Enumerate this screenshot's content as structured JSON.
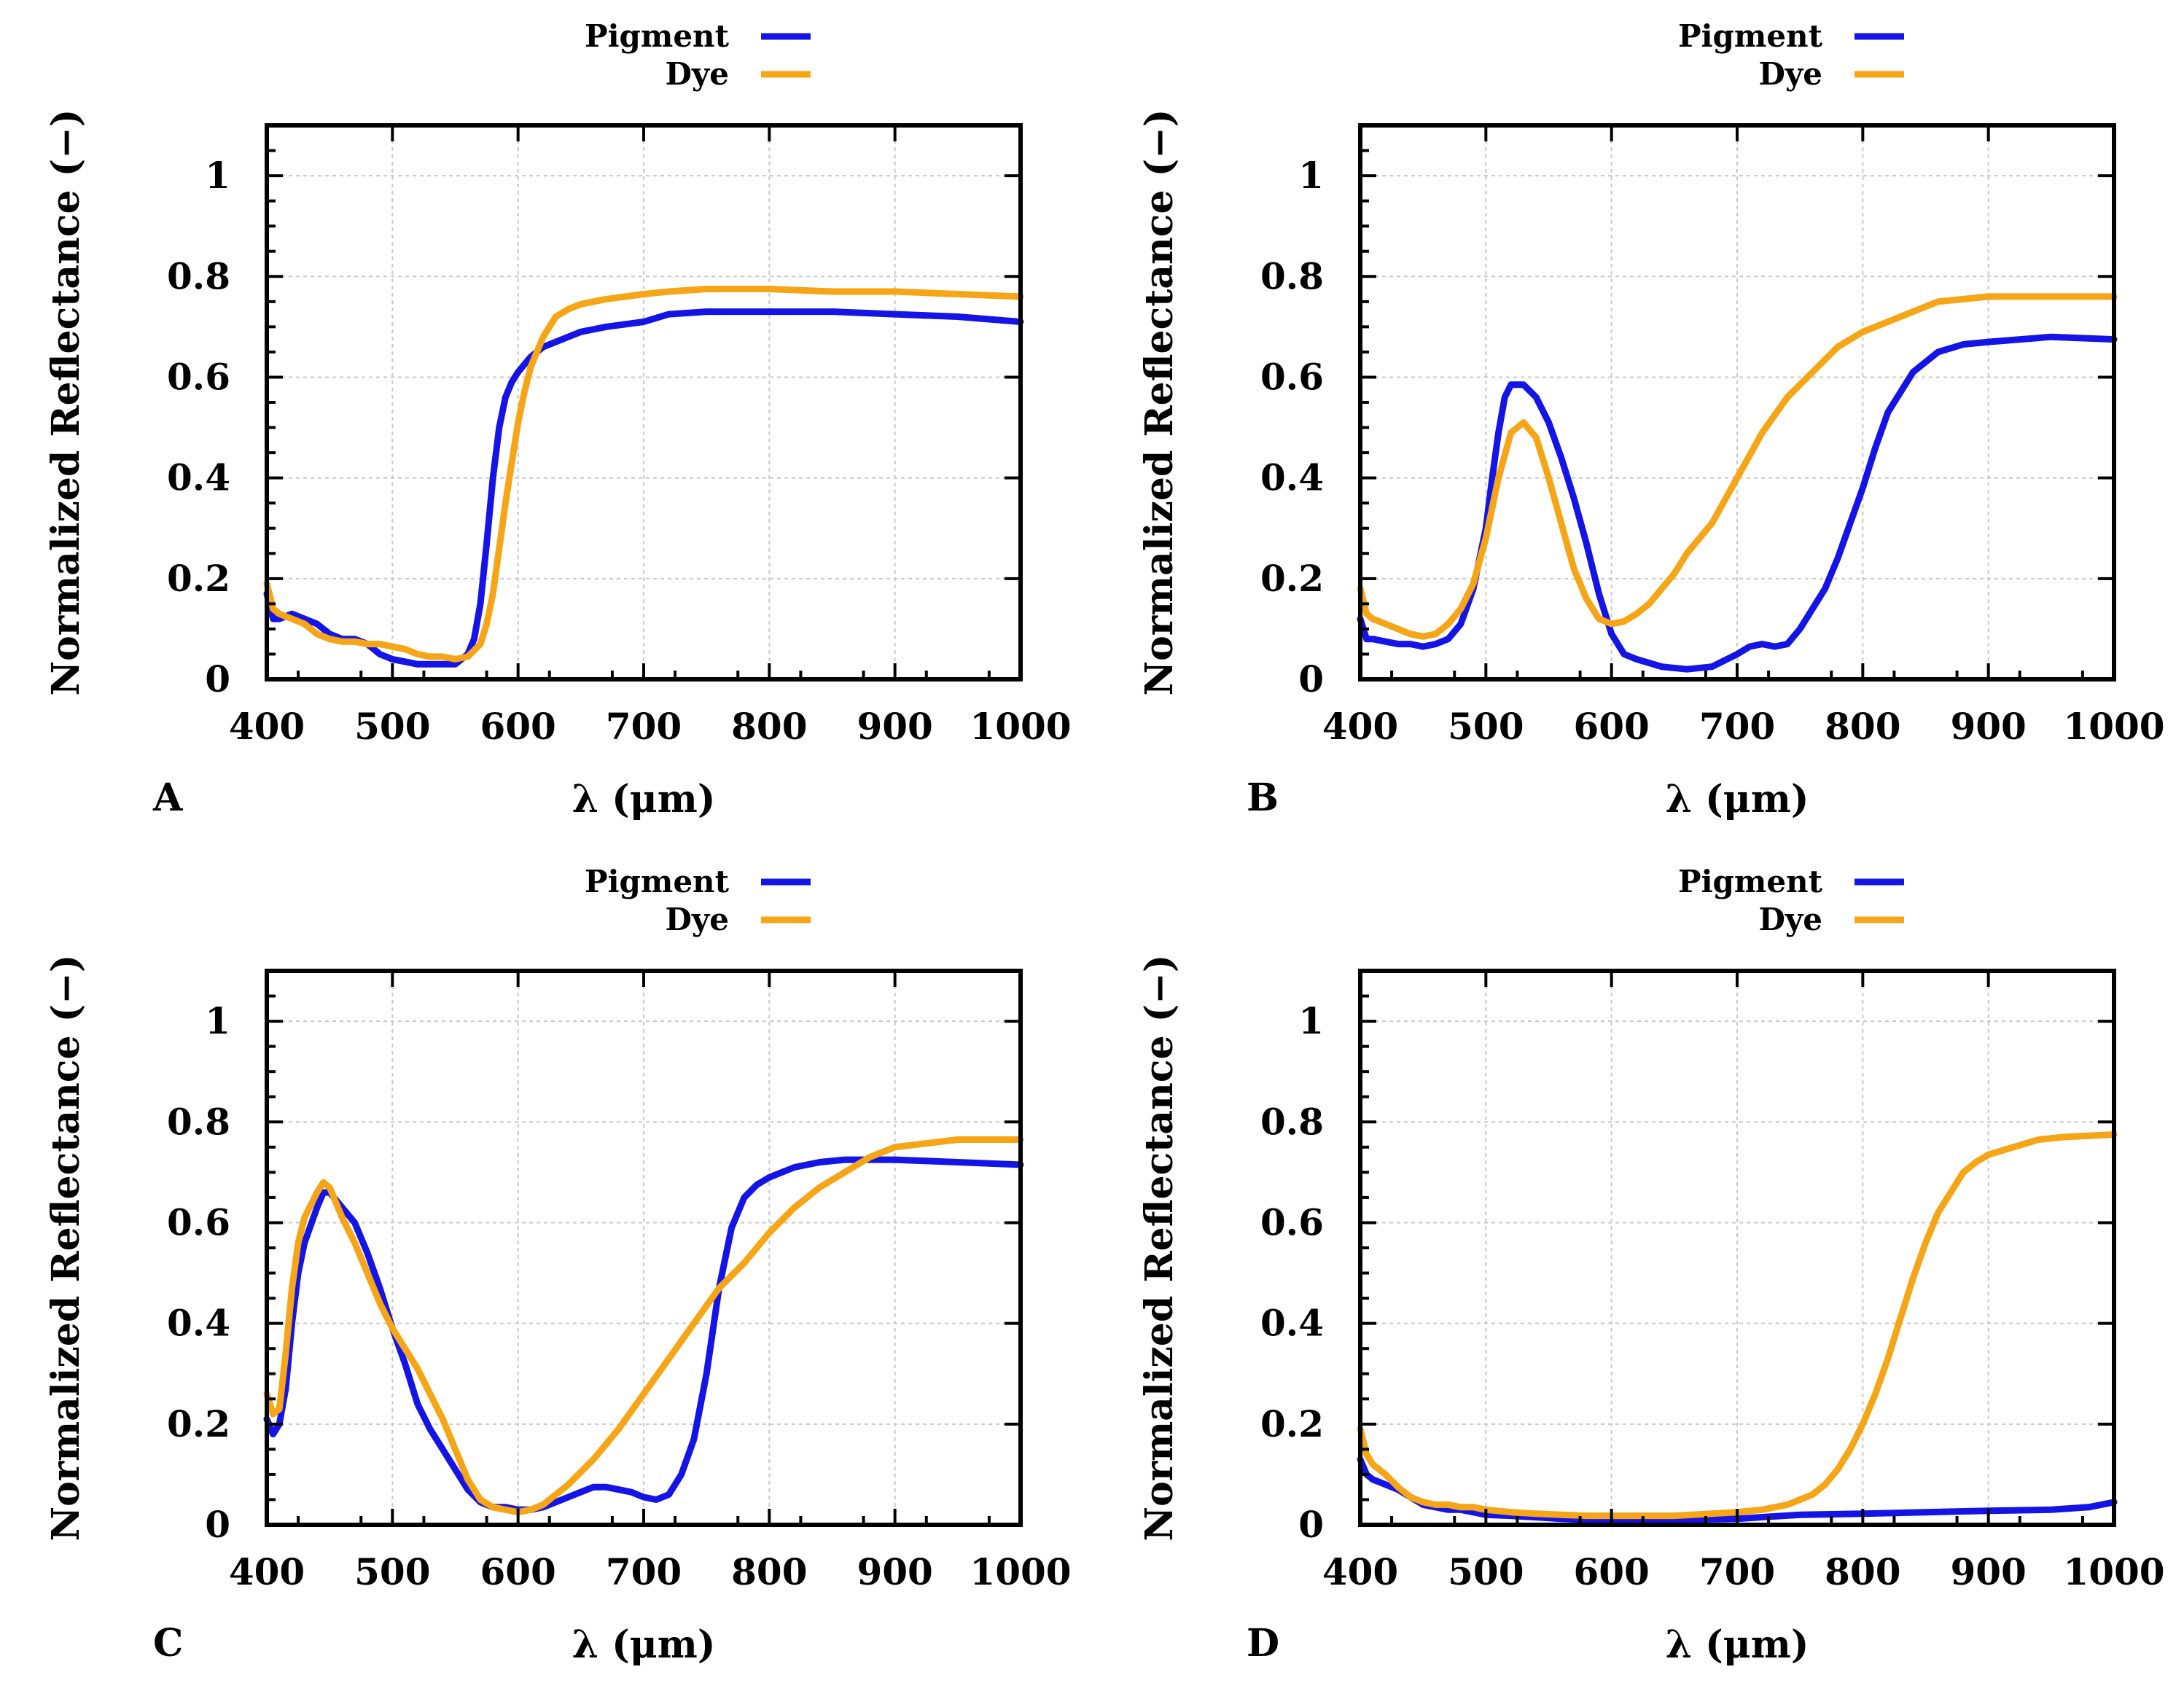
{
  "colors": {
    "pigment": "#1414e6",
    "dye": "#f5a516"
  },
  "chart_data": [
    {
      "type": "line",
      "panel_label": "A",
      "xlabel": "λ (μm)",
      "ylabel": "Normalized Reflectance (−)",
      "xlim": [
        400,
        1000
      ],
      "ylim": [
        0,
        1.1
      ],
      "x_ticks": [
        "400",
        "500",
        "600",
        "700",
        "800",
        "900",
        "1000"
      ],
      "y_ticks": [
        "0",
        "0.2",
        "0.4",
        "0.6",
        "0.8",
        "1"
      ],
      "grid": true,
      "legend_position": "top-right-outside",
      "series": [
        {
          "name": "Pigment",
          "color": "#1414e6",
          "x": [
            400,
            405,
            410,
            420,
            430,
            440,
            450,
            460,
            470,
            480,
            490,
            500,
            510,
            520,
            530,
            540,
            550,
            560,
            565,
            570,
            575,
            580,
            585,
            590,
            595,
            600,
            610,
            620,
            630,
            650,
            670,
            700,
            720,
            750,
            800,
            850,
            900,
            950,
            1000
          ],
          "y": [
            0.17,
            0.12,
            0.12,
            0.13,
            0.12,
            0.11,
            0.09,
            0.08,
            0.08,
            0.07,
            0.05,
            0.04,
            0.035,
            0.03,
            0.03,
            0.03,
            0.03,
            0.05,
            0.08,
            0.15,
            0.27,
            0.4,
            0.5,
            0.56,
            0.59,
            0.61,
            0.64,
            0.66,
            0.67,
            0.69,
            0.7,
            0.71,
            0.725,
            0.73,
            0.73,
            0.73,
            0.725,
            0.72,
            0.71
          ]
        },
        {
          "name": "Dye",
          "color": "#f5a516",
          "x": [
            400,
            405,
            410,
            420,
            430,
            440,
            450,
            460,
            470,
            480,
            490,
            500,
            510,
            520,
            530,
            540,
            550,
            560,
            570,
            575,
            580,
            585,
            590,
            595,
            600,
            605,
            610,
            620,
            630,
            640,
            650,
            670,
            700,
            720,
            750,
            800,
            850,
            900,
            950,
            1000
          ],
          "y": [
            0.19,
            0.14,
            0.13,
            0.12,
            0.11,
            0.09,
            0.08,
            0.075,
            0.075,
            0.07,
            0.07,
            0.065,
            0.06,
            0.05,
            0.045,
            0.045,
            0.04,
            0.045,
            0.07,
            0.11,
            0.17,
            0.26,
            0.35,
            0.43,
            0.51,
            0.57,
            0.62,
            0.68,
            0.72,
            0.735,
            0.745,
            0.755,
            0.765,
            0.77,
            0.775,
            0.775,
            0.77,
            0.77,
            0.765,
            0.76
          ]
        }
      ]
    },
    {
      "type": "line",
      "panel_label": "B",
      "xlabel": "λ (μm)",
      "ylabel": "Normalized Reflectance (−)",
      "xlim": [
        400,
        1000
      ],
      "ylim": [
        0,
        1.1
      ],
      "x_ticks": [
        "400",
        "500",
        "600",
        "700",
        "800",
        "900",
        "1000"
      ],
      "y_ticks": [
        "0",
        "0.2",
        "0.4",
        "0.6",
        "0.8",
        "1"
      ],
      "grid": true,
      "legend_position": "top-right-outside",
      "series": [
        {
          "name": "Pigment",
          "color": "#1414e6",
          "x": [
            400,
            405,
            410,
            420,
            430,
            440,
            450,
            460,
            470,
            480,
            490,
            500,
            505,
            510,
            515,
            520,
            530,
            540,
            550,
            560,
            570,
            580,
            590,
            600,
            610,
            620,
            640,
            660,
            680,
            700,
            710,
            720,
            730,
            740,
            750,
            760,
            770,
            780,
            790,
            800,
            810,
            820,
            840,
            860,
            880,
            900,
            950,
            1000
          ],
          "y": [
            0.12,
            0.08,
            0.08,
            0.075,
            0.07,
            0.07,
            0.065,
            0.07,
            0.08,
            0.11,
            0.18,
            0.3,
            0.4,
            0.49,
            0.56,
            0.585,
            0.585,
            0.56,
            0.51,
            0.44,
            0.36,
            0.27,
            0.17,
            0.09,
            0.05,
            0.04,
            0.025,
            0.02,
            0.025,
            0.05,
            0.065,
            0.07,
            0.065,
            0.07,
            0.1,
            0.14,
            0.18,
            0.24,
            0.31,
            0.38,
            0.46,
            0.53,
            0.61,
            0.65,
            0.665,
            0.67,
            0.68,
            0.675
          ]
        },
        {
          "name": "Dye",
          "color": "#f5a516",
          "x": [
            400,
            405,
            410,
            420,
            430,
            440,
            450,
            460,
            470,
            480,
            490,
            500,
            510,
            520,
            530,
            540,
            550,
            560,
            570,
            580,
            590,
            600,
            610,
            620,
            630,
            640,
            650,
            660,
            680,
            700,
            720,
            740,
            760,
            780,
            800,
            820,
            840,
            860,
            880,
            900,
            950,
            1000
          ],
          "y": [
            0.18,
            0.13,
            0.12,
            0.11,
            0.1,
            0.09,
            0.085,
            0.09,
            0.11,
            0.14,
            0.19,
            0.28,
            0.4,
            0.49,
            0.51,
            0.48,
            0.4,
            0.31,
            0.22,
            0.16,
            0.12,
            0.11,
            0.115,
            0.13,
            0.15,
            0.18,
            0.21,
            0.25,
            0.31,
            0.4,
            0.49,
            0.56,
            0.61,
            0.66,
            0.69,
            0.71,
            0.73,
            0.75,
            0.755,
            0.76,
            0.76,
            0.76
          ]
        }
      ]
    },
    {
      "type": "line",
      "panel_label": "C",
      "xlabel": "λ (μm)",
      "ylabel": "Normalized Reflectance (−)",
      "xlim": [
        400,
        1000
      ],
      "ylim": [
        0,
        1.1
      ],
      "x_ticks": [
        "400",
        "500",
        "600",
        "700",
        "800",
        "900",
        "1000"
      ],
      "y_ticks": [
        "0",
        "0.2",
        "0.4",
        "0.6",
        "0.8",
        "1"
      ],
      "grid": true,
      "legend_position": "top-right-outside",
      "series": [
        {
          "name": "Pigment",
          "color": "#1414e6",
          "x": [
            400,
            405,
            410,
            415,
            420,
            425,
            430,
            440,
            445,
            450,
            460,
            470,
            480,
            490,
            500,
            510,
            520,
            530,
            540,
            550,
            560,
            570,
            580,
            590,
            600,
            610,
            620,
            630,
            640,
            650,
            660,
            670,
            680,
            690,
            700,
            710,
            720,
            730,
            740,
            750,
            760,
            770,
            780,
            790,
            800,
            820,
            840,
            860,
            880,
            900,
            950,
            1000
          ],
          "y": [
            0.21,
            0.18,
            0.2,
            0.27,
            0.4,
            0.5,
            0.56,
            0.63,
            0.66,
            0.66,
            0.63,
            0.6,
            0.54,
            0.47,
            0.39,
            0.32,
            0.24,
            0.19,
            0.15,
            0.11,
            0.07,
            0.045,
            0.035,
            0.035,
            0.03,
            0.03,
            0.035,
            0.045,
            0.055,
            0.065,
            0.075,
            0.075,
            0.07,
            0.065,
            0.055,
            0.05,
            0.06,
            0.1,
            0.17,
            0.3,
            0.47,
            0.59,
            0.65,
            0.675,
            0.69,
            0.71,
            0.72,
            0.725,
            0.725,
            0.725,
            0.72,
            0.715
          ]
        },
        {
          "name": "Dye",
          "color": "#f5a516",
          "x": [
            400,
            405,
            410,
            415,
            420,
            425,
            430,
            440,
            445,
            450,
            460,
            470,
            480,
            490,
            500,
            510,
            520,
            530,
            540,
            550,
            560,
            570,
            580,
            590,
            600,
            610,
            620,
            640,
            660,
            680,
            700,
            720,
            740,
            760,
            780,
            800,
            820,
            840,
            860,
            880,
            900,
            950,
            1000
          ],
          "y": [
            0.26,
            0.22,
            0.23,
            0.34,
            0.47,
            0.56,
            0.61,
            0.66,
            0.68,
            0.67,
            0.61,
            0.56,
            0.5,
            0.44,
            0.39,
            0.35,
            0.31,
            0.26,
            0.21,
            0.15,
            0.09,
            0.05,
            0.035,
            0.03,
            0.025,
            0.03,
            0.04,
            0.08,
            0.13,
            0.19,
            0.26,
            0.33,
            0.4,
            0.47,
            0.52,
            0.58,
            0.63,
            0.67,
            0.7,
            0.73,
            0.75,
            0.765,
            0.765
          ]
        }
      ]
    },
    {
      "type": "line",
      "panel_label": "D",
      "xlabel": "λ (μm)",
      "ylabel": "Normalized Reflectance (−)",
      "xlim": [
        400,
        1000
      ],
      "ylim": [
        0,
        1.1
      ],
      "x_ticks": [
        "400",
        "500",
        "600",
        "700",
        "800",
        "900",
        "1000"
      ],
      "y_ticks": [
        "0",
        "0.2",
        "0.4",
        "0.6",
        "0.8",
        "1"
      ],
      "grid": true,
      "legend_position": "top-right-outside",
      "series": [
        {
          "name": "Pigment",
          "color": "#1414e6",
          "x": [
            400,
            405,
            410,
            420,
            430,
            440,
            450,
            460,
            470,
            480,
            490,
            500,
            520,
            540,
            560,
            580,
            600,
            650,
            700,
            750,
            800,
            850,
            900,
            950,
            980,
            1000
          ],
          "y": [
            0.13,
            0.1,
            0.09,
            0.08,
            0.07,
            0.055,
            0.04,
            0.035,
            0.03,
            0.03,
            0.025,
            0.02,
            0.018,
            0.015,
            0.012,
            0.01,
            0.01,
            0.01,
            0.012,
            0.02,
            0.022,
            0.025,
            0.028,
            0.03,
            0.035,
            0.045
          ]
        },
        {
          "name": "Dye",
          "color": "#f5a516",
          "x": [
            400,
            405,
            410,
            420,
            430,
            440,
            450,
            460,
            470,
            480,
            490,
            500,
            520,
            540,
            560,
            580,
            600,
            650,
            700,
            720,
            740,
            760,
            770,
            780,
            790,
            800,
            810,
            820,
            830,
            840,
            850,
            860,
            870,
            880,
            890,
            900,
            920,
            940,
            960,
            1000
          ],
          "y": [
            0.19,
            0.14,
            0.12,
            0.1,
            0.075,
            0.055,
            0.045,
            0.04,
            0.04,
            0.035,
            0.035,
            0.03,
            0.025,
            0.022,
            0.02,
            0.018,
            0.018,
            0.018,
            0.025,
            0.03,
            0.04,
            0.06,
            0.08,
            0.11,
            0.15,
            0.2,
            0.26,
            0.33,
            0.41,
            0.49,
            0.56,
            0.62,
            0.66,
            0.7,
            0.72,
            0.735,
            0.75,
            0.765,
            0.77,
            0.775
          ]
        }
      ]
    }
  ]
}
